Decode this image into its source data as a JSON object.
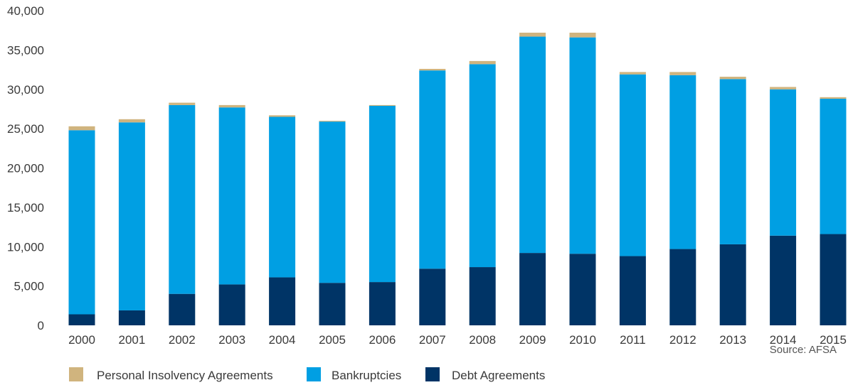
{
  "chart_data": {
    "type": "bar",
    "stacked": true,
    "categories": [
      "2000",
      "2001",
      "2002",
      "2003",
      "2004",
      "2005",
      "2006",
      "2007",
      "2008",
      "2009",
      "2010",
      "2011",
      "2012",
      "2013",
      "2014",
      "2015"
    ],
    "series": [
      {
        "name": "Debt Agreements",
        "color": "#003466",
        "values": [
          1400,
          1900,
          4000,
          5200,
          6100,
          5400,
          5500,
          7200,
          7400,
          9200,
          9100,
          8800,
          9700,
          10300,
          11400,
          11600
        ]
      },
      {
        "name": "Bankruptcies",
        "color": "#009fe3",
        "values": [
          23400,
          23900,
          24000,
          22500,
          20400,
          20500,
          22400,
          25200,
          25800,
          27500,
          27500,
          23100,
          22100,
          21000,
          18600,
          17200
        ]
      },
      {
        "name": "Personal Insolvency Agreements",
        "color": "#d0b47e",
        "values": [
          500,
          400,
          300,
          300,
          200,
          100,
          100,
          200,
          400,
          500,
          600,
          300,
          400,
          300,
          300,
          200
        ]
      }
    ],
    "ylim": [
      0,
      40000
    ],
    "yticks": [
      0,
      5000,
      10000,
      15000,
      20000,
      25000,
      30000,
      35000,
      40000
    ],
    "ytick_labels": [
      "0",
      "5,000",
      "10,000",
      "15,000",
      "20,000",
      "25,000",
      "30,000",
      "35,000",
      "40,000"
    ],
    "grid": false,
    "legend": {
      "position": "bottom-left",
      "entries": [
        "Personal Insolvency Agreements",
        "Bankruptcies",
        "Debt Agreements"
      ]
    },
    "source": "Source: AFSA"
  }
}
